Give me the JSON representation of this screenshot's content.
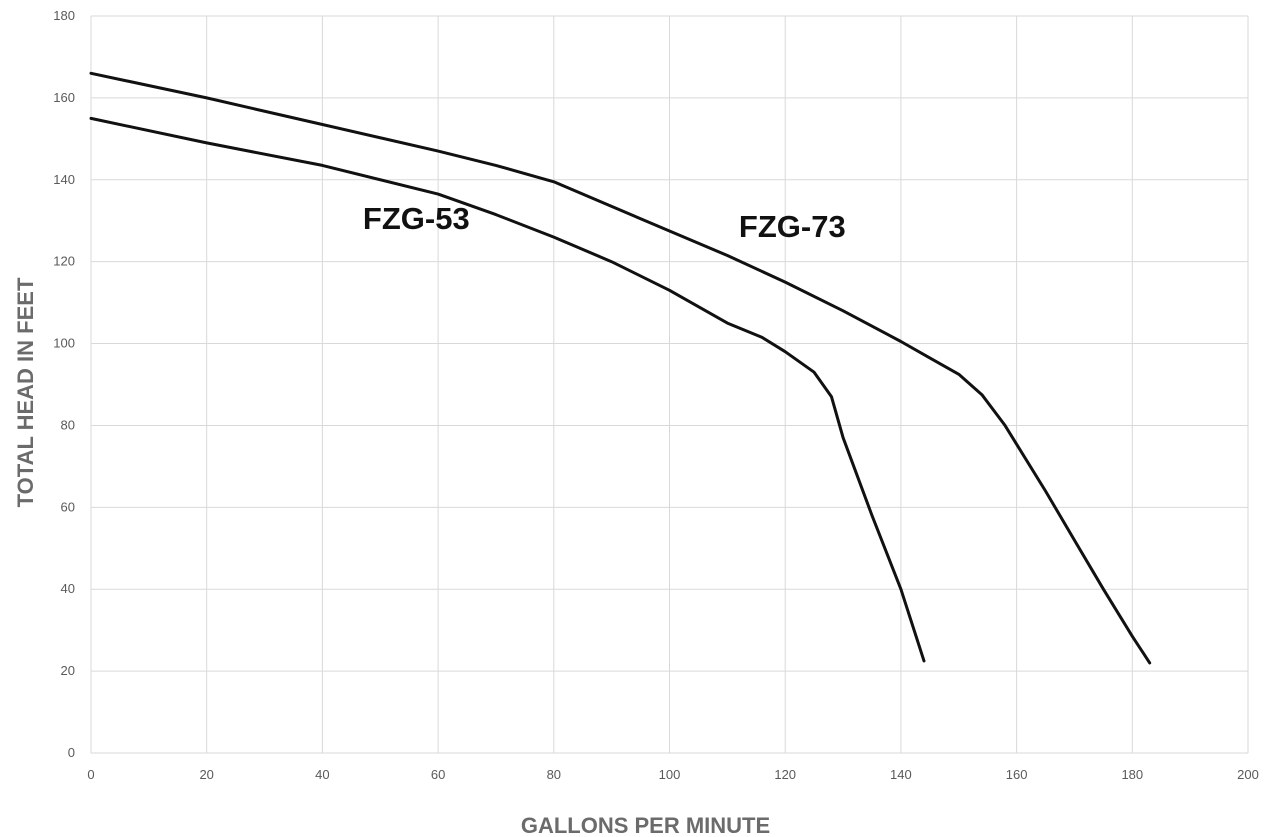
{
  "chart_data": {
    "type": "line",
    "title": "",
    "xlabel": "GALLONS PER MINUTE",
    "ylabel": "TOTAL HEAD IN FEET",
    "xlim": [
      0,
      200
    ],
    "ylim": [
      0,
      180
    ],
    "x_ticks": [
      0,
      20,
      40,
      60,
      80,
      100,
      120,
      140,
      160,
      180,
      200
    ],
    "y_ticks": [
      0,
      20,
      40,
      60,
      80,
      100,
      120,
      140,
      160,
      180
    ],
    "grid": true,
    "legend": "none",
    "series": [
      {
        "name": "FZG-53",
        "label_at": [
          47,
          128
        ],
        "points": [
          [
            0,
            155
          ],
          [
            20,
            149
          ],
          [
            40,
            143.5
          ],
          [
            60,
            136.5
          ],
          [
            70,
            131.5
          ],
          [
            80,
            126
          ],
          [
            90,
            120
          ],
          [
            100,
            113
          ],
          [
            110,
            105
          ],
          [
            116,
            101.5
          ],
          [
            120,
            98
          ],
          [
            125,
            93
          ],
          [
            128,
            87
          ],
          [
            130,
            77
          ],
          [
            135,
            58
          ],
          [
            140,
            40
          ],
          [
            144,
            22.5
          ]
        ]
      },
      {
        "name": "FZG-73",
        "label_at": [
          112,
          126
        ],
        "points": [
          [
            0,
            166
          ],
          [
            20,
            160
          ],
          [
            40,
            153.5
          ],
          [
            60,
            147
          ],
          [
            70,
            143.5
          ],
          [
            80,
            139.5
          ],
          [
            90,
            133.5
          ],
          [
            100,
            127.5
          ],
          [
            110,
            121.5
          ],
          [
            120,
            115
          ],
          [
            130,
            108
          ],
          [
            140,
            100.5
          ],
          [
            145,
            96.5
          ],
          [
            150,
            92.5
          ],
          [
            154,
            87.5
          ],
          [
            158,
            80
          ],
          [
            165,
            64
          ],
          [
            170,
            52
          ],
          [
            175,
            40
          ],
          [
            180,
            28.5
          ],
          [
            183,
            22
          ]
        ]
      }
    ],
    "colors": {
      "line": "#111111",
      "grid": "#d9d9d9",
      "tick_text": "#5a5a5a",
      "axis_title": "#6b6b6b"
    }
  }
}
